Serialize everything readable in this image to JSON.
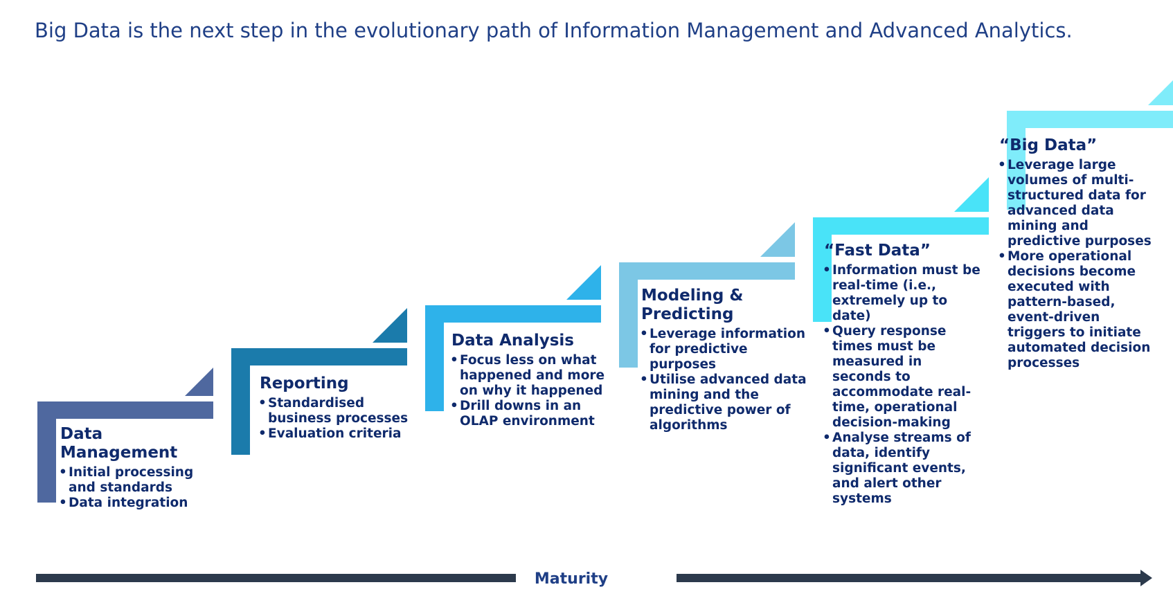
{
  "title": "Big Data is the next step in the evolutionary path of Information Management and Advanced Analytics.",
  "axis_label": "Maturity",
  "stages": [
    {
      "title": "Data Management",
      "color": "#4f689f",
      "points": [
        "Initial processing and standards",
        "Data integration"
      ]
    },
    {
      "title": "Reporting",
      "color": "#1b7bab",
      "points": [
        "Standardised business processes",
        "Evaluation criteria"
      ]
    },
    {
      "title": "Data Analysis",
      "color": "#2eb2ea",
      "points": [
        "Focus less on what happened and more on why it happened",
        "Drill downs in an OLAP environment"
      ]
    },
    {
      "title": "Modeling & Predicting",
      "color": "#7cc7e5",
      "points": [
        "Leverage information for predictive purposes",
        "Utilise advanced data mining and the predictive power of algorithms"
      ]
    },
    {
      "title": "“Fast Data”",
      "color": "#49e3f8",
      "points": [
        "Information must be real-time (i.e., extremely up to date)",
        "Query response times must be measured in seconds to accommodate real-time, operational decision-making",
        "Analyse streams of data, identify significant events, and alert other systems"
      ]
    },
    {
      "title": "“Big Data”",
      "color": "#7fecfa",
      "points": [
        "Leverage large volumes of multi-structured data for advanced data mining and predictive purposes",
        "More operational decisions become executed with pattern-based, event-driven triggers to initiate automated decision processes"
      ]
    }
  ],
  "arrow_color": "#2c3a4c"
}
